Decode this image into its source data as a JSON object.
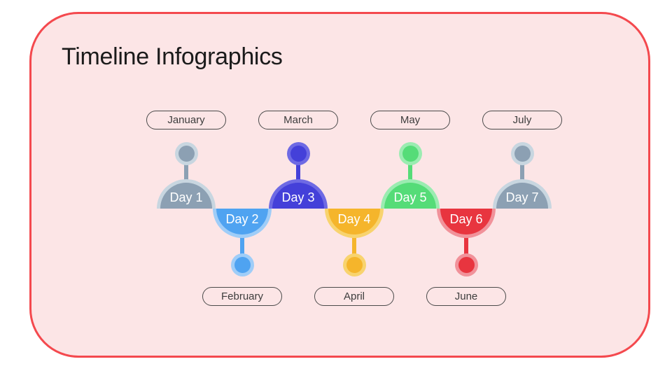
{
  "title": "Timeline Infographics",
  "frame": {
    "background": "#FCE5E6",
    "border_color": "#F4494E",
    "outside_background": "#FFFFFF"
  },
  "timeline": {
    "day_text_color": "#FFFFFF",
    "month_text_color": "#3D3D3D",
    "month_border_color": "#4A4A4A",
    "items": [
      {
        "day_label": "Day 1",
        "month_label": "January",
        "position": "top",
        "main_color": "#8CA0B3",
        "ring_color": "#C8D6E0"
      },
      {
        "day_label": "Day 2",
        "month_label": "February",
        "position": "bottom",
        "main_color": "#4FA3F1",
        "ring_color": "#9FCDF8"
      },
      {
        "day_label": "Day 3",
        "month_label": "March",
        "position": "top",
        "main_color": "#4440D9",
        "ring_color": "#6E6AE4"
      },
      {
        "day_label": "Day 4",
        "month_label": "April",
        "position": "bottom",
        "main_color": "#F5B52B",
        "ring_color": "#F8D36E"
      },
      {
        "day_label": "Day 5",
        "month_label": "May",
        "position": "top",
        "main_color": "#55DC78",
        "ring_color": "#9BECB1"
      },
      {
        "day_label": "Day 6",
        "month_label": "June",
        "position": "bottom",
        "main_color": "#E8353F",
        "ring_color": "#F1929A"
      },
      {
        "day_label": "Day 7",
        "month_label": "July",
        "position": "top",
        "main_color": "#8CA0B3",
        "ring_color": "#C8D6E0"
      }
    ]
  }
}
